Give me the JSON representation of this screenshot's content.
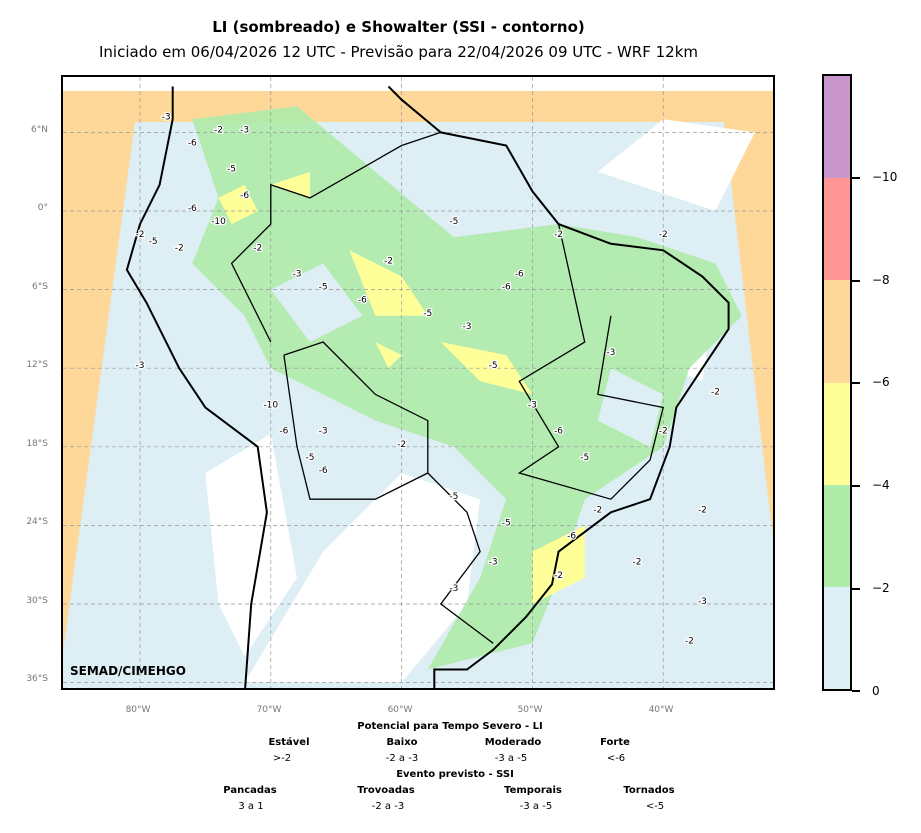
{
  "title": "LI (sombreado) e Showalter (SSI - contorno)",
  "subtitle": "Iniciado em 06/04/2026 12 UTC - Previsão para 22/04/2026 09 UTC - WRF 12km",
  "credit": "SEMAD/CIMEHGO",
  "lat_labels": [
    "6°N",
    "0°",
    "6°S",
    "12°S",
    "18°S",
    "24°S",
    "30°S",
    "36°S"
  ],
  "lon_labels": [
    "80°W",
    "70°W",
    "60°W",
    "50°W",
    "40°W"
  ],
  "colorbar": {
    "ticks": [
      "−10",
      "−8",
      "−6",
      "−4",
      "−2",
      "0"
    ],
    "colors": [
      "#c896cb",
      "#ff9595",
      "#fdd898",
      "#ffff99",
      "#aeeaa8",
      "#ddeef5"
    ]
  },
  "legend": {
    "li_title": "Potencial para Tempo Severo - LI",
    "li": [
      {
        "name": "Estável",
        "range": ">-2"
      },
      {
        "name": "Baixo",
        "range": "-2 a -3"
      },
      {
        "name": "Moderado",
        "range": "-3 a -5"
      },
      {
        "name": "Forte",
        "range": "<-6"
      }
    ],
    "ssi_title": "Evento previsto - SSI",
    "ssi": [
      {
        "name": "Pancadas",
        "range": "3 a 1"
      },
      {
        "name": "Trovoadas",
        "range": "-2 a -3"
      },
      {
        "name": "Temporais",
        "range": "-3 a -5"
      },
      {
        "name": "Tornados",
        "range": "<-5"
      }
    ]
  },
  "contour_labels": [
    "-3",
    "-6",
    "-2",
    "-3",
    "-5",
    "-6",
    "-2",
    "-5",
    "-2",
    "-6",
    "-10",
    "-2",
    "-3",
    "-5",
    "-6",
    "-2",
    "-5",
    "-3",
    "-6",
    "-2",
    "-5",
    "-3",
    "-6",
    "-5",
    "-2",
    "-3",
    "-10",
    "-6",
    "-3",
    "-5",
    "-6",
    "-2",
    "-5",
    "-3",
    "-2",
    "-6",
    "-5",
    "-3",
    "-2",
    "-2",
    "-3",
    "-2",
    "-2",
    "-6",
    "-5",
    "-3",
    "-2",
    "-2"
  ]
}
